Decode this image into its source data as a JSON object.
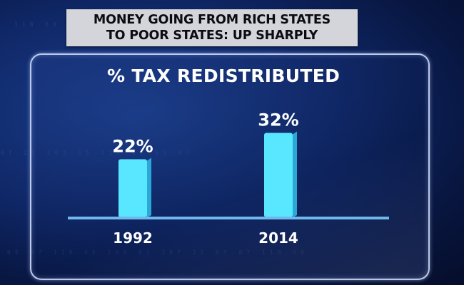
{
  "headline": {
    "line1": "MONEY GOING FROM RICH STATES",
    "line2": "TO POOR STATES: UP SHARPLY"
  },
  "colors": {
    "bar": "#59e6ff",
    "bar_side": "#2aa9d8",
    "baseline": "#6fb8ee",
    "background": "#0f2766"
  },
  "chart_data": {
    "type": "bar",
    "title": "% TAX REDISTRIBUTED",
    "categories": [
      "1992",
      "2014"
    ],
    "values": [
      22,
      32
    ],
    "data_labels": [
      "22%",
      "32%"
    ],
    "ylim": [
      0,
      40
    ],
    "grid": false
  }
}
